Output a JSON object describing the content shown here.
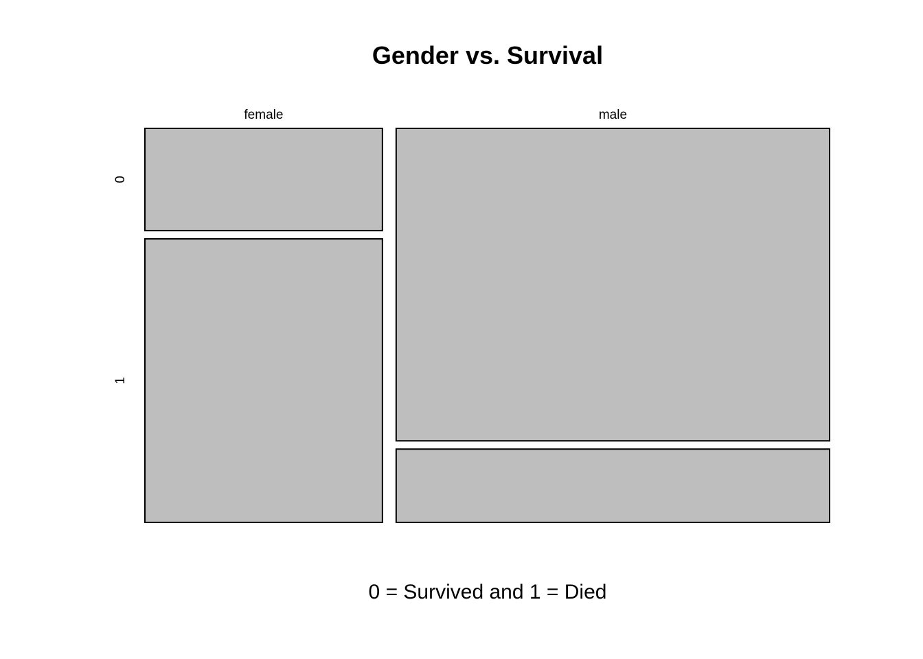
{
  "chart_data": {
    "type": "mosaic",
    "title": "Gender vs. Survival",
    "xlabel": "0 = Survived and 1 = Died",
    "columns": [
      "female",
      "male"
    ],
    "rows": [
      "0",
      "1"
    ],
    "column_proportions": [
      0.354,
      0.646
    ],
    "row_proportions_within_column": {
      "female": [
        0.265,
        0.735
      ],
      "male": [
        0.81,
        0.19
      ]
    },
    "fill_color": "#bebebe"
  }
}
